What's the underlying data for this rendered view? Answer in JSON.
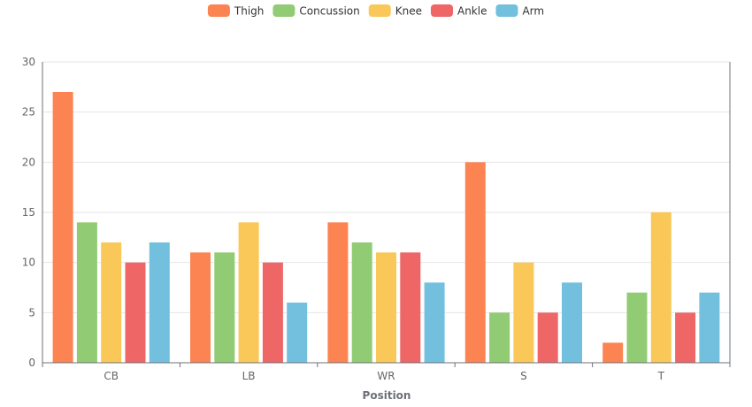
{
  "chart_data": {
    "type": "bar",
    "xlabel": "Position",
    "ylabel": "",
    "ylim": [
      0,
      30
    ],
    "yticks": [
      0,
      5,
      10,
      15,
      20,
      25,
      30
    ],
    "categories": [
      "CB",
      "LB",
      "WR",
      "S",
      "T"
    ],
    "legend_position": "top-center",
    "grid": true,
    "series": [
      {
        "name": "Thigh",
        "color": "#fc8452",
        "values": [
          27,
          11,
          14,
          20,
          2
        ]
      },
      {
        "name": "Concussion",
        "color": "#91cc75",
        "values": [
          14,
          11,
          12,
          5,
          7
        ]
      },
      {
        "name": "Knee",
        "color": "#fac858",
        "values": [
          12,
          14,
          11,
          10,
          15
        ]
      },
      {
        "name": "Ankle",
        "color": "#ee6666",
        "values": [
          10,
          10,
          11,
          5,
          5
        ]
      },
      {
        "name": "Arm",
        "color": "#73c0de",
        "values": [
          12,
          6,
          8,
          8,
          7
        ]
      }
    ]
  }
}
